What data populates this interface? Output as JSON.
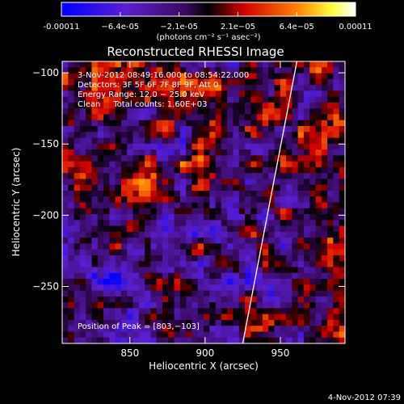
{
  "chart_data": {
    "type": "heatmap",
    "title": "Reconstructed RHESSI Image",
    "xlabel": "Heliocentric X (arcsec)",
    "ylabel": "Heliocentric Y (arcsec)",
    "xlim": [
      805,
      993
    ],
    "ylim": [
      -290,
      -92
    ],
    "x_ticks": [
      850,
      900,
      950
    ],
    "y_ticks": [
      -100,
      -150,
      -200,
      -250
    ],
    "colorbar": {
      "label": "(photons cm⁻² s⁻¹ asec⁻²)",
      "range": [
        -0.00011,
        0.00011
      ],
      "tick_labels": [
        "-0.00011",
        "−6.4e-05",
        "−2.1e-05",
        "2.1e−05",
        "6.4e−05",
        "0.00011"
      ],
      "colormap": "blue-purple-black-red-yellow-white"
    },
    "annotations": [
      "3-Nov-2012 08:49:16.000 to 08:54:22.000",
      "Detectors: 3F 5F 6F 7F 8F 9F, Att 0",
      "Energy Range: 12.0 − 25.0 keV",
      "Clean     Total counts: 1.60E+03"
    ],
    "peak_label": "Position of Peak = [803,−103]",
    "limb_line": [
      [
        925,
        -290
      ],
      [
        961,
        -92
      ]
    ],
    "grid": false
  },
  "footer": {
    "timestamp": "4-Nov-2012 07:39"
  }
}
